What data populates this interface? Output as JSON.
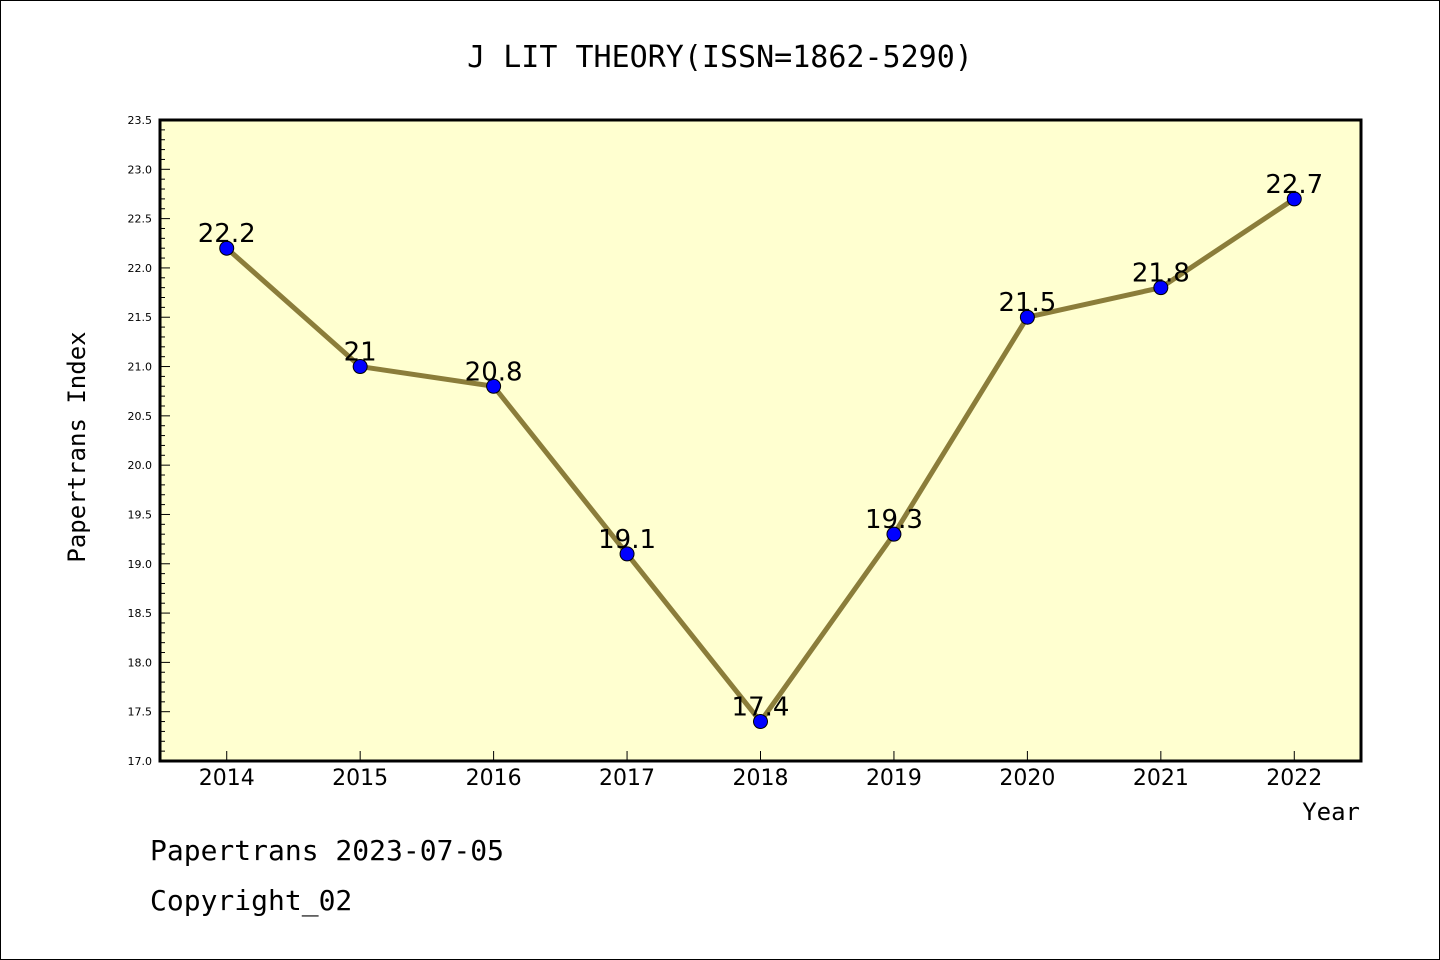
{
  "chart_data": {
    "type": "line",
    "title": "J LIT THEORY(ISSN=1862-5290)",
    "xlabel": "Year",
    "ylabel": "Papertrans Index",
    "categories": [
      "2014",
      "2015",
      "2016",
      "2017",
      "2018",
      "2019",
      "2020",
      "2021",
      "2022"
    ],
    "values": [
      22.2,
      21.0,
      20.8,
      19.1,
      17.4,
      19.3,
      21.5,
      21.8,
      22.7
    ],
    "data_labels": [
      "22.2",
      "21",
      "20.8",
      "19.1",
      "17.4",
      "19.3",
      "21.5",
      "21.8",
      "22.7"
    ],
    "ylim": [
      17.0,
      23.5
    ],
    "yticks": [
      "17.0",
      "17.5",
      "18.0",
      "18.5",
      "19.0",
      "19.5",
      "20.0",
      "20.5",
      "21.0",
      "21.5",
      "22.0",
      "22.5",
      "23.0",
      "23.5"
    ],
    "grid": false,
    "colors": {
      "line": "#8b7d3a",
      "marker": "#0000ff",
      "plot_background": "#ffffd0"
    }
  },
  "footer": {
    "date_line": "Papertrans 2023-07-05",
    "copyright": "Copyright_02"
  }
}
